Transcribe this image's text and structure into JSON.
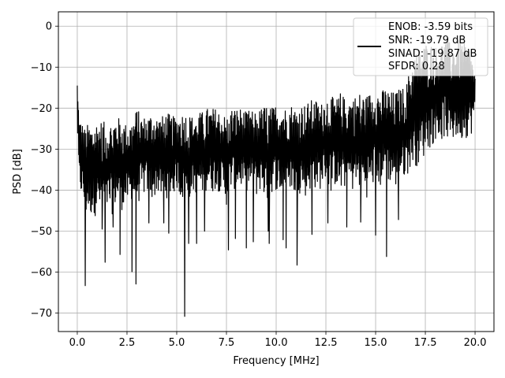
{
  "chart_data": {
    "type": "line",
    "title": "",
    "xlabel": "Frequency [MHz]",
    "ylabel": "PSD [dB]",
    "xlim": [
      -0.95,
      20.95
    ],
    "ylim": [
      -74.5,
      3.5
    ],
    "xticks": [
      0.0,
      2.5,
      5.0,
      7.5,
      10.0,
      12.5,
      15.0,
      17.5,
      20.0
    ],
    "xtick_labels": [
      "0.0",
      "2.5",
      "5.0",
      "7.5",
      "10.0",
      "12.5",
      "15.0",
      "17.5",
      "20.0"
    ],
    "yticks": [
      0,
      -10,
      -20,
      -30,
      -40,
      -50,
      -60,
      -70
    ],
    "ytick_labels": [
      "0",
      "−10",
      "−20",
      "−30",
      "−40",
      "−50",
      "−60",
      "−70"
    ],
    "grid": true,
    "legend_position": "top-right",
    "line_color": "#000000",
    "legend_entries": [
      "ENOB: -3.59 bits",
      "SNR: -19.79 dB",
      "SINAD: -19.87 dB",
      "SFDR: 0.28"
    ],
    "series": [
      {
        "x": [
          0.0,
          0.05,
          0.1,
          0.2,
          0.3,
          0.4,
          0.5,
          0.75,
          1.0,
          1.25,
          1.5,
          1.75,
          2.0,
          2.25,
          2.5,
          2.75,
          3.0,
          3.25,
          3.5,
          3.75,
          4.0,
          4.25,
          4.5,
          4.75,
          5.0,
          5.25,
          5.5,
          5.75,
          6.0,
          6.25,
          6.5,
          6.75,
          7.0,
          7.25,
          7.5,
          7.75,
          8.0,
          8.25,
          8.5,
          8.75,
          9.0,
          9.25,
          9.5,
          9.75,
          10.0,
          10.25,
          10.5,
          10.75,
          11.0,
          11.25,
          11.5,
          11.75,
          12.0,
          12.25,
          12.5,
          12.75,
          13.0,
          13.25,
          13.5,
          13.75,
          14.0,
          14.25,
          14.5,
          14.75,
          15.0,
          15.25,
          15.5,
          15.75,
          16.0,
          16.25,
          16.5,
          16.75,
          17.0,
          17.25,
          17.5,
          17.75,
          18.0,
          18.25,
          18.5,
          18.75,
          19.0,
          19.25,
          19.5,
          19.75,
          20.0
        ],
        "upper": [
          -14.5,
          -18,
          -22,
          -23,
          -24,
          -25,
          -24,
          -24,
          -23,
          -23,
          -24,
          -23,
          -22,
          -23,
          -24,
          -23,
          -20,
          -22,
          -22,
          -21,
          -22,
          -22,
          -21,
          -22,
          -22,
          -21,
          -21,
          -22,
          -21,
          -21,
          -20,
          -20,
          -20,
          -21,
          -22,
          -20,
          -20,
          -20,
          -21,
          -20,
          -21,
          -20,
          -19,
          -20,
          -19,
          -19,
          -20,
          -19,
          -20,
          -19,
          -19,
          -18,
          -18,
          -19,
          -17,
          -17,
          -18,
          -16,
          -18,
          -17,
          -17,
          -16,
          -17,
          -16,
          -15,
          -16,
          -15,
          -16,
          -16,
          -15,
          -15,
          -10,
          -6,
          -5,
          -4,
          -4,
          -5,
          -4,
          -3,
          -4,
          -4,
          -3,
          -4,
          -5,
          -12
        ],
        "lower": [
          -26,
          -34,
          -41,
          -42,
          -43,
          -48,
          -46,
          -47,
          -46,
          -46,
          -46,
          -46,
          -44,
          -45,
          -44,
          -44,
          -44,
          -42,
          -41,
          -43,
          -41,
          -43,
          -42,
          -42,
          -40,
          -43,
          -44,
          -41,
          -41,
          -42,
          -40,
          -41,
          -40,
          -41,
          -44,
          -40,
          -40,
          -40,
          -42,
          -40,
          -42,
          -40,
          -44,
          -41,
          -40,
          -42,
          -40,
          -40,
          -43,
          -40,
          -42,
          -40,
          -40,
          -40,
          -38,
          -41,
          -39,
          -42,
          -40,
          -41,
          -40,
          -40,
          -42,
          -41,
          -38,
          -40,
          -37,
          -39,
          -40,
          -38,
          -37,
          -35,
          -34,
          -35,
          -31,
          -30,
          -28,
          -29,
          -27,
          -30,
          -28,
          -29,
          -27,
          -28,
          -22
        ],
        "dips": [
          [
            0.4,
            -63.3
          ],
          [
            0.85,
            -45.5
          ],
          [
            1.25,
            -49.5
          ],
          [
            1.4,
            -57.6
          ],
          [
            1.8,
            -49
          ],
          [
            2.15,
            -55.7
          ],
          [
            2.75,
            -59.9
          ],
          [
            2.95,
            -62.9
          ],
          [
            3.6,
            -48
          ],
          [
            4.35,
            -48
          ],
          [
            4.6,
            -50.5
          ],
          [
            5.4,
            -70.8
          ],
          [
            5.6,
            -53
          ],
          [
            6.0,
            -53
          ],
          [
            6.4,
            -50
          ],
          [
            7.6,
            -54.6
          ],
          [
            7.95,
            -51.8
          ],
          [
            8.5,
            -54.1
          ],
          [
            8.85,
            -52.6
          ],
          [
            9.6,
            -50
          ],
          [
            9.65,
            -53
          ],
          [
            10.35,
            -52.1
          ],
          [
            10.5,
            -54.1
          ],
          [
            11.05,
            -58.3
          ],
          [
            11.8,
            -50.8
          ],
          [
            12.6,
            -48
          ],
          [
            13.55,
            -49
          ],
          [
            14.25,
            -47.8
          ],
          [
            15.0,
            -51
          ],
          [
            15.55,
            -56.2
          ],
          [
            16.15,
            -47.2
          ]
        ]
      }
    ]
  }
}
